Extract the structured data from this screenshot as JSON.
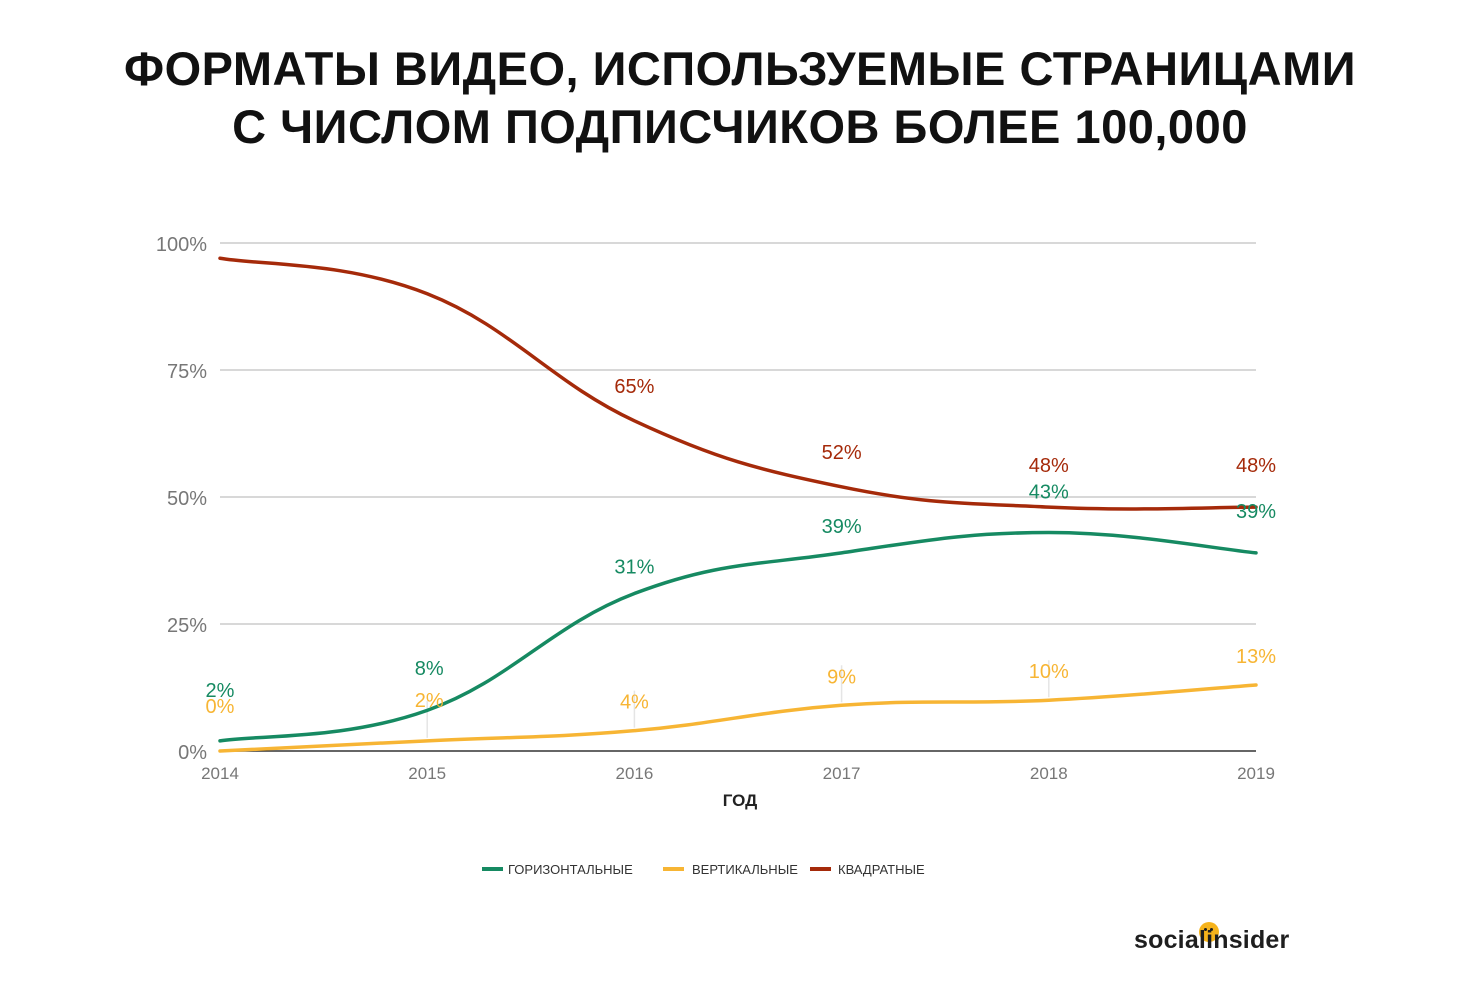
{
  "title": {
    "line1": "ФОРМАТЫ ВИДЕО, ИСПОЛЬЗУЕМЫЕ СТРАНИЦАМИ",
    "line2": "С ЧИСЛОМ ПОДПИСЧИКОВ БОЛЕЕ 100,000"
  },
  "brand": {
    "text": "socialinsider",
    "dot_color": "#f6b31b"
  },
  "chart_data": {
    "type": "line",
    "title": "ФОРМАТЫ ВИДЕО, ИСПОЛЬЗУЕМЫЕ СТРАНИЦАМИ С ЧИСЛОМ ПОДПИСЧИКОВ БОЛЕЕ 100,000",
    "xlabel": "ГОД",
    "ylabel": "",
    "categories": [
      "2014",
      "2015",
      "2016",
      "2017",
      "2018",
      "2019"
    ],
    "ylim": [
      0,
      100
    ],
    "yticks": [
      0,
      25,
      50,
      75,
      100
    ],
    "ytick_labels": [
      "0%",
      "25%",
      "50%",
      "75%",
      "100%"
    ],
    "grid": true,
    "legend_position": "bottom",
    "series": [
      {
        "name": "ГОРИЗОНТАЛЬНЫЕ",
        "color": "#168a62",
        "values": [
          2,
          8,
          31,
          39,
          43,
          39
        ],
        "labels": [
          "2%",
          "8%",
          "31%",
          "39%",
          "43%",
          "39%"
        ]
      },
      {
        "name": "ВЕРТИКАЛЬНЫЕ",
        "color": "#f7b534",
        "values": [
          0,
          2,
          4,
          9,
          10,
          13
        ],
        "labels": [
          "0%",
          "2%",
          "4%",
          "9%",
          "10%",
          "13%"
        ]
      },
      {
        "name": "КВАДРАТНЫЕ",
        "color": "#a52a0a",
        "values": [
          97,
          90,
          65,
          52,
          48,
          48
        ],
        "labels": [
          "97%",
          "90%",
          "65%",
          "52%",
          "48%",
          "48%"
        ],
        "shown_labels": [
          false,
          false,
          true,
          true,
          true,
          true
        ]
      }
    ]
  }
}
